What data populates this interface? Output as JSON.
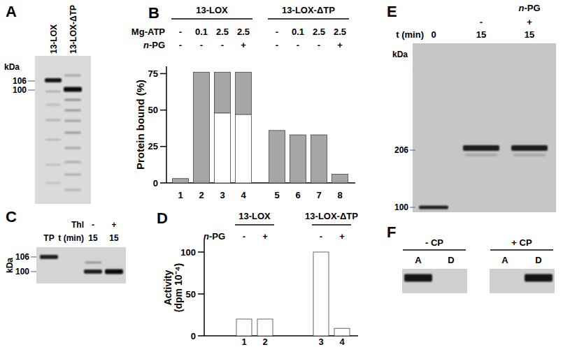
{
  "chart_data": [
    {
      "panel": "B",
      "type": "bar",
      "stacked": true,
      "grid": false,
      "y_label": "Protein bound (%)",
      "categories": [
        "1",
        "2",
        "3",
        "4",
        "5",
        "6",
        "7",
        "8"
      ],
      "groups": [
        {
          "label": "13-LOX",
          "categories": [
            "1",
            "2",
            "3",
            "4"
          ]
        },
        {
          "label": "13-LOX-ΔTP",
          "categories": [
            "5",
            "6",
            "7",
            "8"
          ]
        }
      ],
      "conditions": [
        {
          "label": "Mg-ATP",
          "values": [
            "-",
            0.1,
            2.5,
            2.5,
            "-",
            0.1,
            2.5,
            2.5
          ]
        },
        {
          "label": "n-PG",
          "values": [
            "-",
            "-",
            "-",
            "+",
            "-",
            "-",
            "-",
            "+"
          ]
        }
      ],
      "series": [
        {
          "color": "#ffffff",
          "values": [
            null,
            null,
            48,
            47,
            null,
            null,
            null,
            null
          ]
        },
        {
          "color": "#a6a6a6",
          "values": [
            3,
            76,
            28,
            29,
            36,
            33,
            33,
            6
          ]
        }
      ],
      "ylim": [
        0,
        80
      ],
      "yticks": [
        0,
        25,
        50,
        75
      ]
    },
    {
      "panel": "D",
      "type": "bar",
      "grid": false,
      "y_label": [
        "Activity",
        "(dpm 10⁻⁴)"
      ],
      "categories": [
        "1",
        "2",
        "3",
        "4"
      ],
      "groups": [
        {
          "label": "13-LOX",
          "categories": [
            "1",
            "2"
          ]
        },
        {
          "label": "13-LOX-ΔTP",
          "categories": [
            "3",
            "4"
          ]
        }
      ],
      "conditions": [
        {
          "label": "n-PG",
          "values": [
            "-",
            "+",
            "-",
            "+"
          ]
        }
      ],
      "series": [
        {
          "color": "#ffffff",
          "values": [
            20,
            20,
            100,
            9
          ]
        }
      ],
      "ylim": [
        0,
        115
      ],
      "yticks": [
        0,
        50,
        100
      ]
    }
  ],
  "gels": [
    {
      "panel": "A",
      "lanes": [
        "13-LOX",
        "13-LOX-ΔTP"
      ],
      "unit": "kDa",
      "markers": [
        106,
        100
      ]
    },
    {
      "panel": "C",
      "rows": [
        {
          "label": "Thl",
          "values": [
            null,
            "-",
            "+"
          ]
        },
        {
          "label": "t (min)",
          "values": [
            "TP",
            15,
            15
          ]
        }
      ],
      "unit": "kDa",
      "markers": [
        106,
        100
      ]
    },
    {
      "panel": "E",
      "rows": [
        {
          "label": "n-PG",
          "values": [
            null,
            "-",
            "+"
          ]
        },
        {
          "label": "t (min)",
          "values": [
            0,
            15,
            15
          ]
        }
      ],
      "unit": "kDa",
      "markers": [
        206,
        100
      ]
    },
    {
      "panel": "F",
      "groups": [
        {
          "label": "- CP",
          "lanes": [
            "A",
            "D"
          ]
        },
        {
          "label": "+ CP",
          "lanes": [
            "A",
            "D"
          ]
        }
      ]
    }
  ]
}
